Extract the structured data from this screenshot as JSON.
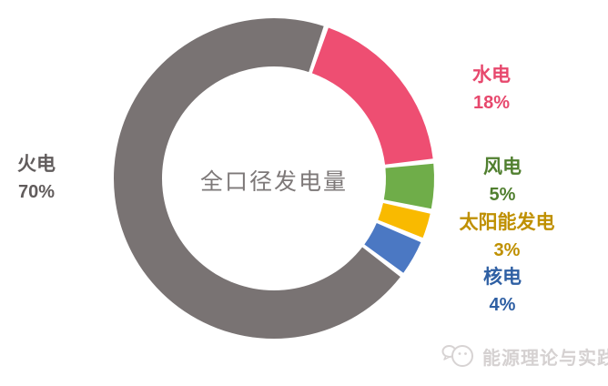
{
  "chart_data": {
    "type": "pie",
    "variant": "donut",
    "title": "全口径发电量",
    "center_label": "全口径发电量",
    "unit": "%",
    "start_angle_deg": 127,
    "direction": "clockwise",
    "gap_between_slices_deg": 1.8,
    "legend_position": "around-chart",
    "background": "#ffffff",
    "series": [
      {
        "key": "thermal",
        "name": "火电",
        "value": 70,
        "pct_label": "70%",
        "color": "#797373",
        "label_color": "#615c5c"
      },
      {
        "key": "hydro",
        "name": "水电",
        "value": 18,
        "pct_label": "18%",
        "color": "#ee4e72",
        "label_color": "#e7486d"
      },
      {
        "key": "wind",
        "name": "风电",
        "value": 5,
        "pct_label": "5%",
        "color": "#6fad49",
        "label_color": "#507f2f"
      },
      {
        "key": "solar",
        "name": "太阳能发电",
        "value": 3,
        "pct_label": "3%",
        "color": "#f9ba00",
        "label_color": "#bf9000"
      },
      {
        "key": "nuclear",
        "name": "核电",
        "value": 4,
        "pct_label": "4%",
        "color": "#4b78c3",
        "label_color": "#2e5fa3"
      }
    ]
  },
  "watermark": {
    "text": "能源理论与实践",
    "icon": "chat-doodle-logo",
    "color": "#d5d1d1"
  }
}
